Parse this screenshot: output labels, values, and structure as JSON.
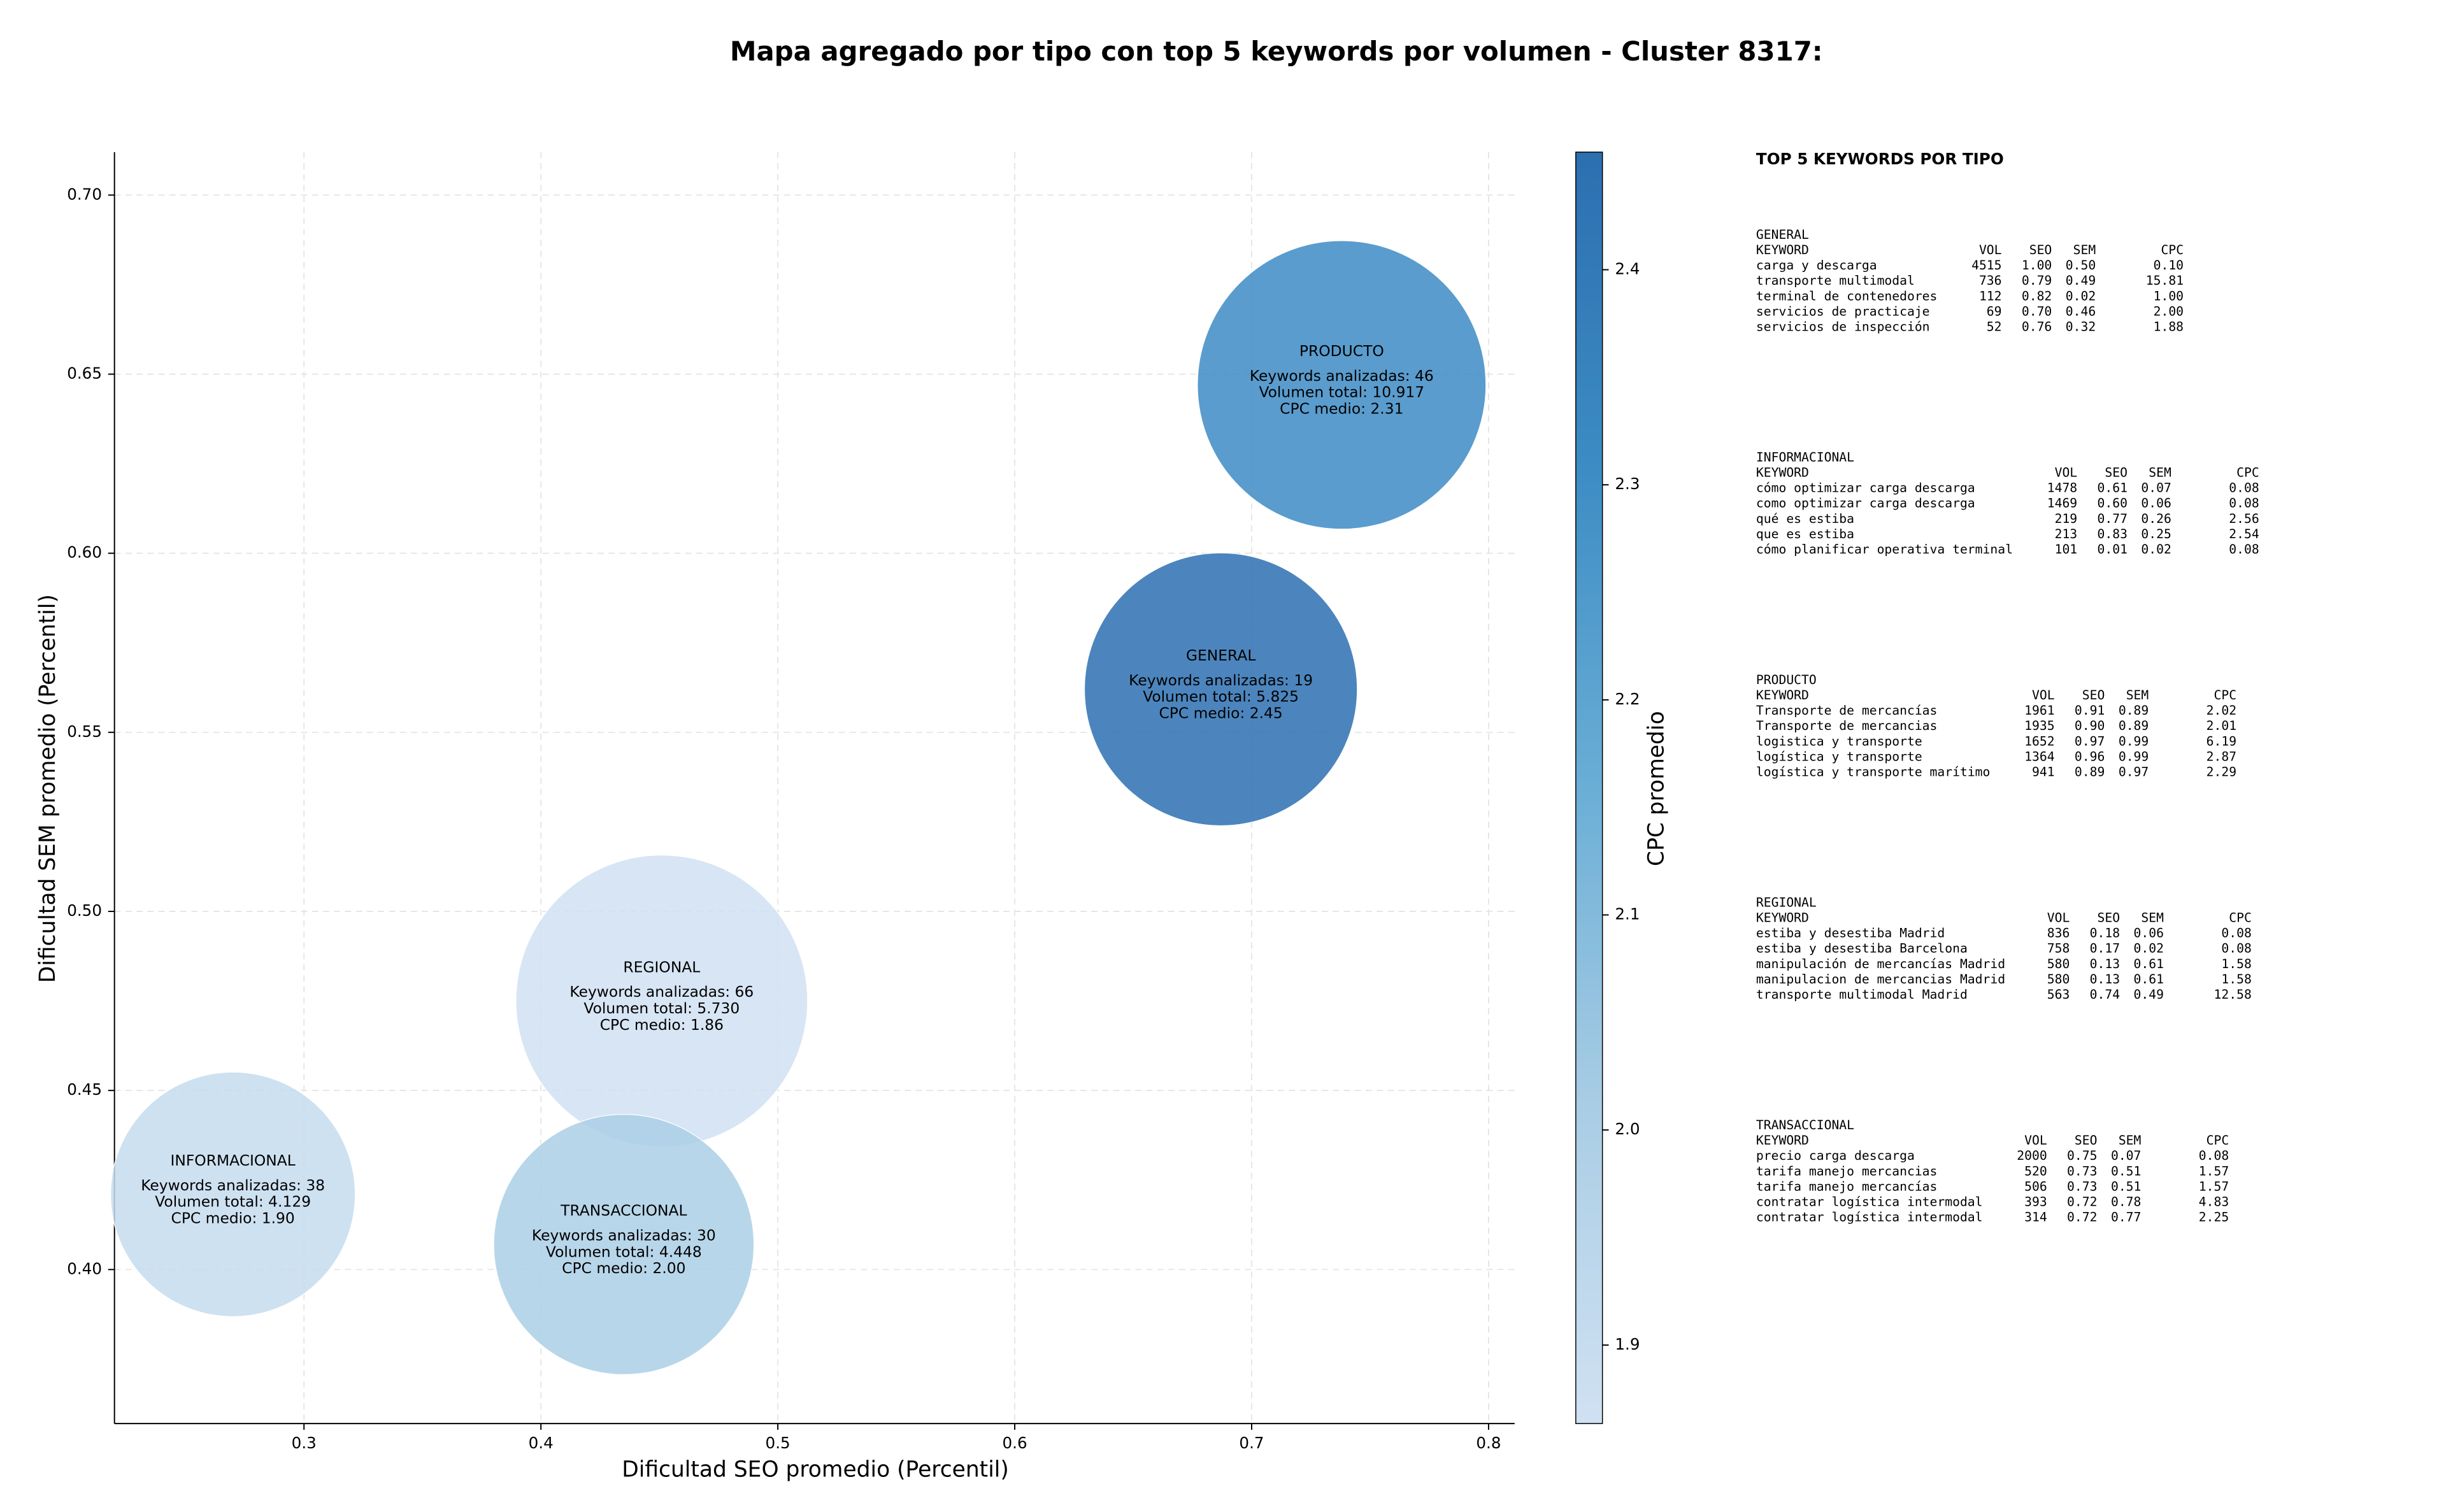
{
  "chart_data": {
    "type": "bubble",
    "title": "Mapa agregado por tipo con top 5 keywords por volumen - Cluster 8317:",
    "x_label": "Dificultad SEO promedio (Percentil)",
    "y_label": "Dificultad SEM promedio (Percentil)",
    "colorbar_label": "CPC promedio",
    "categories": [
      "GENERAL",
      "INFORMACIONAL",
      "PRODUCTO",
      "REGIONAL",
      "TRANSACCIONAL"
    ],
    "x": [
      0.687,
      0.27,
      0.738,
      0.451,
      0.435
    ],
    "y": [
      0.562,
      0.421,
      0.647,
      0.475,
      0.407
    ],
    "sizes": [
      7569,
      6084,
      8464,
      8649,
      6889
    ],
    "cpc": [
      2.45,
      1.9,
      2.31,
      1.86,
      2.0
    ],
    "annotations": [
      [
        "Keywords analizadas: 19",
        "Volumen total: 5.825",
        "CPC medio: 2.45"
      ],
      [
        "Keywords analizadas: 38",
        "Volumen total: 4.129",
        "CPC medio: 1.90"
      ],
      [
        "Keywords analizadas: 46",
        "Volumen total: 10.917",
        "CPC medio: 2.31"
      ],
      [
        "Keywords analizadas: 66",
        "Volumen total: 5.730",
        "CPC medio: 1.86"
      ],
      [
        "Keywords analizadas: 30",
        "Volumen total: 4.448",
        "CPC medio: 2.00"
      ]
    ],
    "xlim": [
      0.22,
      0.811
    ],
    "ylim": [
      0.357,
      0.712
    ],
    "xticks": [
      0.3,
      0.4,
      0.5,
      0.6,
      0.7,
      0.8
    ],
    "yticks": [
      {
        "value": 0.4,
        "label": "0.40"
      },
      0.45,
      {
        "value": 0.5,
        "label": "0.50"
      },
      0.55,
      {
        "value": 0.6,
        "label": "0.60"
      },
      0.65,
      {
        "value": 0.7,
        "label": "0.70"
      }
    ],
    "clim": [
      1.8635,
      2.4547
    ],
    "cticks": [
      1.9,
      {
        "value": 2.0,
        "label": "2.0"
      },
      2.1,
      2.2,
      2.3,
      2.4
    ],
    "colormap": [
      "#d0e1f2",
      "#a9cde5",
      "#6aaed6",
      "#3d8cc4",
      "#2c6fb0"
    ],
    "grid": true
  },
  "keyword_panel": {
    "title": "TOP 5 KEYWORDS POR TIPO",
    "groups": [
      {
        "name": "GENERAL",
        "header": [
          "KEYWORD",
          "VOL",
          "SEO",
          "SEM",
          "CPC"
        ],
        "rows": [
          [
            "carga y descarga",
            "4515",
            "1.00",
            "0.50",
            "0.10"
          ],
          [
            "transporte multimodal",
            "736",
            "0.79",
            "0.49",
            "15.81"
          ],
          [
            "terminal de contenedores",
            "112",
            "0.82",
            "0.02",
            "1.00"
          ],
          [
            "servicios de practicaje",
            "69",
            "0.70",
            "0.46",
            "2.00"
          ],
          [
            "servicios de inspección",
            "52",
            "0.76",
            "0.32",
            "1.88"
          ]
        ]
      },
      {
        "name": "INFORMACIONAL",
        "header": [
          "KEYWORD",
          "VOL",
          "SEO",
          "SEM",
          "CPC"
        ],
        "rows": [
          [
            "cómo optimizar carga descarga",
            "1478",
            "0.61",
            "0.07",
            "0.08"
          ],
          [
            "como optimizar carga descarga",
            "1469",
            "0.60",
            "0.06",
            "0.08"
          ],
          [
            "qué es estiba",
            "219",
            "0.77",
            "0.26",
            "2.56"
          ],
          [
            "que es estiba",
            "213",
            "0.83",
            "0.25",
            "2.54"
          ],
          [
            "cómo planificar operativa terminal",
            "101",
            "0.01",
            "0.02",
            "0.08"
          ]
        ]
      },
      {
        "name": "PRODUCTO",
        "header": [
          "KEYWORD",
          "VOL",
          "SEO",
          "SEM",
          "CPC"
        ],
        "rows": [
          [
            "Transporte de mercancías",
            "1961",
            "0.91",
            "0.89",
            "2.02"
          ],
          [
            "Transporte de mercancias",
            "1935",
            "0.90",
            "0.89",
            "2.01"
          ],
          [
            "logistica y transporte",
            "1652",
            "0.97",
            "0.99",
            "6.19"
          ],
          [
            "logística y transporte",
            "1364",
            "0.96",
            "0.99",
            "2.87"
          ],
          [
            "logística y transporte marítimo",
            "941",
            "0.89",
            "0.97",
            "2.29"
          ]
        ]
      },
      {
        "name": "REGIONAL",
        "header": [
          "KEYWORD",
          "VOL",
          "SEO",
          "SEM",
          "CPC"
        ],
        "rows": [
          [
            "estiba y desestiba Madrid",
            "836",
            "0.18",
            "0.06",
            "0.08"
          ],
          [
            "estiba y desestiba Barcelona",
            "758",
            "0.17",
            "0.02",
            "0.08"
          ],
          [
            "manipulación de mercancías Madrid",
            "580",
            "0.13",
            "0.61",
            "1.58"
          ],
          [
            "manipulacion de mercancias Madrid",
            "580",
            "0.13",
            "0.61",
            "1.58"
          ],
          [
            "transporte multimodal Madrid",
            "563",
            "0.74",
            "0.49",
            "12.58"
          ]
        ]
      },
      {
        "name": "TRANSACCIONAL",
        "header": [
          "KEYWORD",
          "VOL",
          "SEO",
          "SEM",
          "CPC"
        ],
        "rows": [
          [
            "precio carga descarga",
            "2000",
            "0.75",
            "0.07",
            "0.08"
          ],
          [
            "tarifa manejo mercancias",
            "520",
            "0.73",
            "0.51",
            "1.57"
          ],
          [
            "tarifa manejo mercancías",
            "506",
            "0.73",
            "0.51",
            "1.57"
          ],
          [
            "contratar logística intermodal",
            "393",
            "0.72",
            "0.78",
            "4.83"
          ],
          [
            "contratar logística intermodal",
            "314",
            "0.72",
            "0.77",
            "2.25"
          ]
        ]
      }
    ]
  }
}
